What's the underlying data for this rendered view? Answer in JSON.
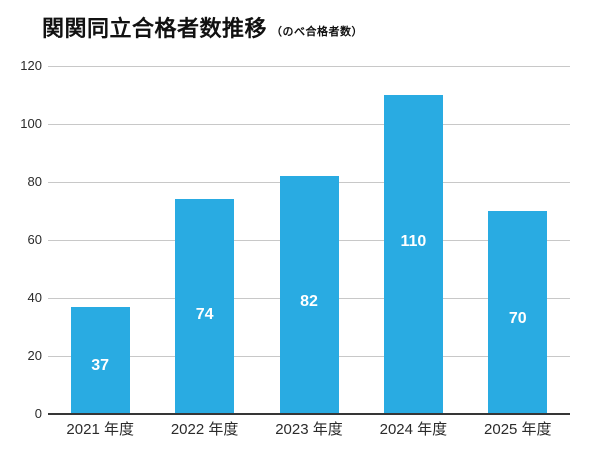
{
  "page": {
    "title": "関関同立合格者数推移",
    "subtitle": "（のべ合格者数）"
  },
  "colors": {
    "bar": "#29abe2",
    "grid": "#c8c8c8",
    "axis": "#363636",
    "bar_label": "#ffffff",
    "tick_text": "#2b2b2b",
    "title_text": "#111111"
  },
  "chart_data": {
    "type": "bar",
    "title": "関関同立合格者数推移",
    "subtitle": "（のべ合格者数）",
    "categories": [
      "2021 年度",
      "2022 年度",
      "2023 年度",
      "2024 年度",
      "2025 年度"
    ],
    "values": [
      37,
      74,
      82,
      110,
      70
    ],
    "bar_value_labels": [
      "37",
      "74",
      "82",
      "110",
      "70"
    ],
    "xlabel": "",
    "ylabel": "",
    "ylim": [
      0,
      120
    ],
    "yticks": [
      0,
      20,
      40,
      60,
      80,
      100,
      120
    ],
    "grid": true,
    "legend": false
  }
}
